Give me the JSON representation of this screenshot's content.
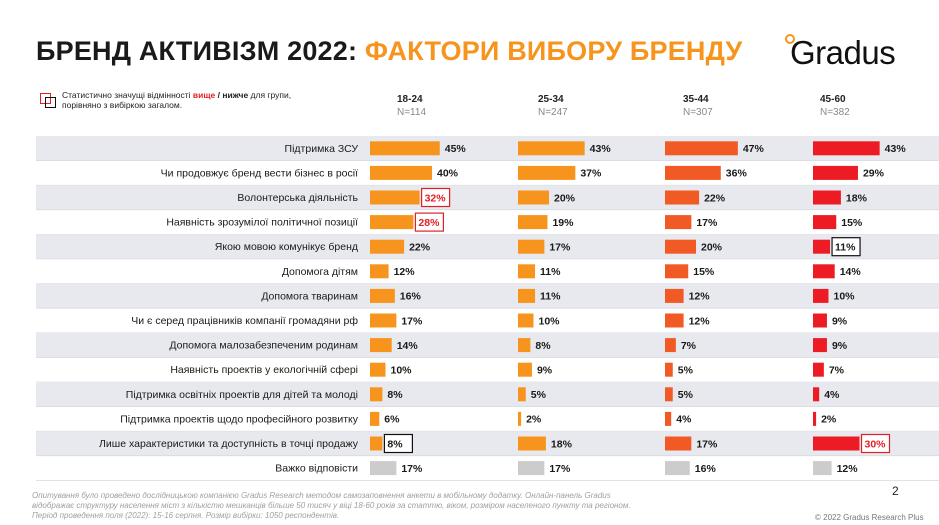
{
  "header": {
    "title_main": "БРЕНД АКТИВІЗМ 2022: ",
    "title_accent": "ФАКТОРИ ВИБОРУ БРЕНДУ",
    "logo_text": "Gradus"
  },
  "legend": {
    "line1_a": "Статистично значущі відмінності ",
    "line1_higher": "вище",
    "line1_sep": " / ",
    "line1_lower": "нижче",
    "line1_b": " для групи,",
    "line2": "порівняно з вибіркою загалом."
  },
  "colors": {
    "orange": "#f7941d",
    "orange_red": "#f15a24",
    "red": "#ed1c24",
    "grey": "#cccccc",
    "highlight_higher": "#e31e24",
    "highlight_lower": "#111111",
    "stripe": "#e8e9ee"
  },
  "chart_data": {
    "type": "bar",
    "orientation": "horizontal",
    "title": "БРЕНД АКТИВІЗМ 2022: ФАКТОРИ ВИБОРУ БРЕНДУ",
    "categories": [
      "Підтримка ЗСУ",
      "Чи продовжує бренд вести бізнес в росії",
      "Волонтерська діяльність",
      "Наявність зрозумілої політичної позиції",
      "Якою мовою комунікує бренд",
      "Допомога дітям",
      "Допомога тваринам",
      "Чи є серед працівників компанії громадяни рф",
      "Допомога малозабезпеченим родинам",
      "Наявність проектів у екологічній сфері",
      "Підтримка освітніх проектів для дітей та молоді",
      "Підтримка проектів щодо професійного розвитку",
      "Лише характеристики та доступність в точці продажу",
      "Важко відповісти"
    ],
    "unit": "%",
    "series": [
      {
        "name": "18-24",
        "n_label": "N=114",
        "color": "#f7941d",
        "values": [
          45,
          40,
          32,
          28,
          22,
          12,
          16,
          17,
          14,
          10,
          8,
          6,
          8,
          17
        ],
        "highlight": [
          null,
          null,
          "higher",
          "higher",
          null,
          null,
          null,
          null,
          null,
          null,
          null,
          null,
          "lower",
          null
        ]
      },
      {
        "name": "25-34",
        "n_label": "N=247",
        "color": "#f7941d",
        "values": [
          43,
          37,
          20,
          19,
          17,
          11,
          11,
          10,
          8,
          9,
          5,
          2,
          18,
          17
        ],
        "highlight": [
          null,
          null,
          null,
          null,
          null,
          null,
          null,
          null,
          null,
          null,
          null,
          null,
          null,
          null
        ]
      },
      {
        "name": "35-44",
        "n_label": "N=307",
        "color": "#f15a24",
        "values": [
          47,
          36,
          22,
          17,
          20,
          15,
          12,
          12,
          7,
          5,
          5,
          4,
          17,
          16
        ],
        "highlight": [
          null,
          null,
          null,
          null,
          null,
          null,
          null,
          null,
          null,
          null,
          null,
          null,
          null,
          null
        ]
      },
      {
        "name": "45-60",
        "n_label": "N=382",
        "color": "#ed1c24",
        "values": [
          43,
          29,
          18,
          15,
          11,
          14,
          10,
          9,
          9,
          7,
          4,
          2,
          30,
          12
        ],
        "highlight": [
          null,
          null,
          null,
          null,
          "lower",
          null,
          null,
          null,
          null,
          null,
          null,
          null,
          "higher",
          null
        ]
      }
    ],
    "grey_last_row": true
  },
  "footer": {
    "footnote_1": "Опитування було проведено дослідницькою компанією Gradus Research методом самозаповнення анкети в мобільному додатку. Онлайн-панель Gradus",
    "footnote_2": "відображає структуру населення міст з кількістю мешканців більше 50 тисяч у віці 18-60 років за статтю, віком, розміром населеного пункту та регіоном.",
    "footnote_3": "Період проведення поля (2022): 15-16 серпня. Розмір вибірки: 1050 респондентів.",
    "page_number": "2",
    "copyright": "© 2022 Gradus Research Plus"
  }
}
